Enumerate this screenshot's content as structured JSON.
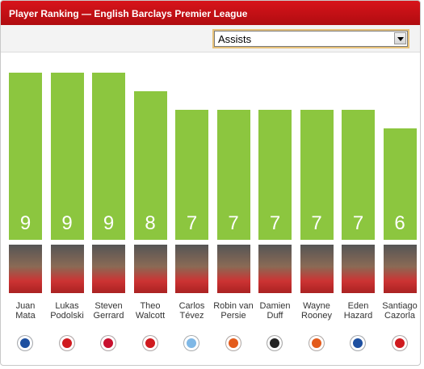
{
  "header": {
    "title": "Player Ranking — English Barclays Premier League"
  },
  "dropdown": {
    "selected": "Assists"
  },
  "chart_data": {
    "type": "bar",
    "categories": [
      "Juan Mata",
      "Lukas Podolski",
      "Steven Gerrard",
      "Theo Walcott",
      "Carlos Tévez",
      "Robin van Persie",
      "Damien Duff",
      "Wayne Rooney",
      "Eden Hazard",
      "Santiago Cazorla"
    ],
    "values": [
      9,
      9,
      9,
      8,
      7,
      7,
      7,
      7,
      7,
      6
    ],
    "color": "#8cc63f"
  }
}
